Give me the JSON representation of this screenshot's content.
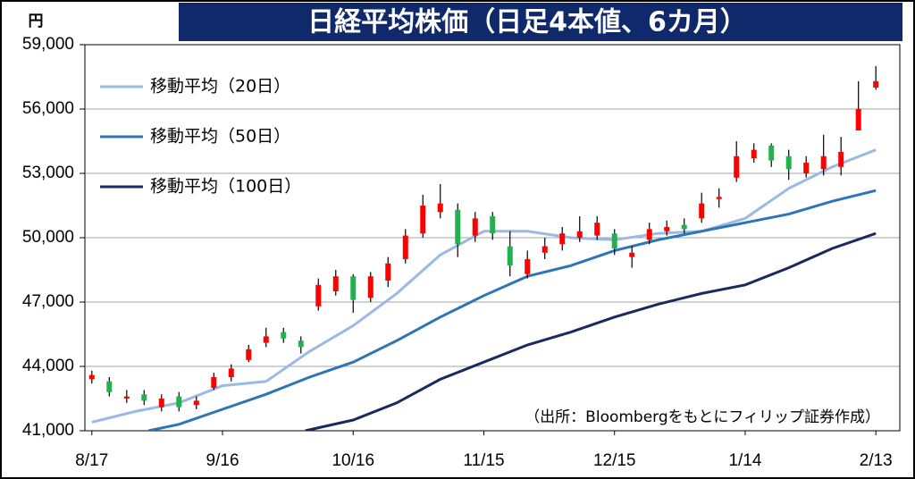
{
  "chart_data": {
    "type": "candlestick",
    "title": "日経平均株価（日足4本値、6カ月）",
    "unit": "円",
    "source": "（出所：Bloombergをもとにフィリップ証券作成）",
    "xlim": [
      -1.6,
      185.5
    ],
    "xticks": [
      {
        "value": 0,
        "label": "8/17"
      },
      {
        "value": 30,
        "label": "9/16"
      },
      {
        "value": 60,
        "label": "10/16"
      },
      {
        "value": 90,
        "label": "11/15"
      },
      {
        "value": 120,
        "label": "12/15"
      },
      {
        "value": 150,
        "label": "1/14"
      },
      {
        "value": 180,
        "label": "2/13"
      }
    ],
    "ylim": [
      41000,
      59000
    ],
    "yticks": [
      {
        "value": 41000,
        "label": "41,000"
      },
      {
        "value": 44000,
        "label": "44,000"
      },
      {
        "value": 47000,
        "label": "47,000"
      },
      {
        "value": 50000,
        "label": "50,000"
      },
      {
        "value": 53000,
        "label": "53,000"
      },
      {
        "value": 56000,
        "label": "56,000"
      },
      {
        "value": 59000,
        "label": "59,000"
      }
    ],
    "grid": true,
    "legend": "upper-left",
    "candles": {
      "up_color": "#ff0000",
      "down_color": "#22b14c",
      "wick_color": "#000000",
      "x": [
        0,
        4,
        8,
        12,
        16,
        20,
        24,
        28,
        32,
        36,
        40,
        44,
        48,
        52,
        56,
        60,
        64,
        68,
        72,
        76,
        80,
        84,
        88,
        92,
        96,
        100,
        104,
        108,
        112,
        116,
        120,
        124,
        128,
        132,
        136,
        140,
        144,
        148,
        152,
        156,
        160,
        164,
        168,
        172,
        176,
        180
      ],
      "open": [
        43400,
        43300,
        42500,
        42700,
        42100,
        42600,
        42200,
        43000,
        43500,
        44300,
        45100,
        45600,
        45200,
        46800,
        47500,
        48200,
        47200,
        48000,
        49000,
        50200,
        51200,
        51300,
        50100,
        51000,
        49600,
        48300,
        49300,
        49700,
        50000,
        50100,
        50200,
        49100,
        49900,
        50300,
        50600,
        50900,
        51800,
        52800,
        53700,
        54300,
        53800,
        53000,
        53200,
        53300,
        55000,
        57000
      ],
      "high": [
        43800,
        43500,
        42900,
        42900,
        42700,
        42800,
        42600,
        43700,
        44100,
        45000,
        45800,
        45800,
        45400,
        48100,
        48500,
        48300,
        48400,
        49100,
        50400,
        52000,
        52500,
        51600,
        51200,
        51200,
        50300,
        49400,
        50000,
        50500,
        51000,
        51000,
        50400,
        49600,
        50700,
        50800,
        50900,
        52100,
        52300,
        54500,
        54400,
        54400,
        54100,
        53800,
        54800,
        54700,
        57300,
        58000
      ],
      "low": [
        43200,
        42600,
        42300,
        42200,
        41900,
        41900,
        42000,
        42900,
        43300,
        44200,
        44900,
        45100,
        44600,
        46600,
        47300,
        46500,
        47000,
        47700,
        48800,
        50000,
        50900,
        49100,
        49800,
        49900,
        48200,
        48100,
        49000,
        49400,
        49800,
        49900,
        49200,
        48600,
        49700,
        50100,
        50200,
        50700,
        51400,
        52600,
        53500,
        53300,
        52700,
        52800,
        52900,
        52900,
        55000,
        56900
      ],
      "close": [
        43600,
        42800,
        42600,
        42400,
        42500,
        42100,
        42400,
        43500,
        43900,
        44800,
        45400,
        45300,
        44900,
        47800,
        48200,
        47100,
        48200,
        48800,
        50100,
        51500,
        51600,
        49700,
        50900,
        50200,
        48700,
        49000,
        49600,
        50200,
        50300,
        50700,
        49500,
        49300,
        50400,
        50500,
        50400,
        51600,
        51900,
        53800,
        54100,
        53600,
        53200,
        53500,
        53800,
        54000,
        56000,
        57300
      ]
    },
    "series": [
      {
        "name": "移動平均（20日）",
        "color": "#9bb9e4",
        "x": [
          0,
          10,
          20,
          30,
          40,
          50,
          60,
          70,
          80,
          90,
          100,
          110,
          120,
          130,
          140,
          150,
          160,
          170,
          180
        ],
        "values": [
          41400,
          41900,
          42300,
          43100,
          43300,
          44700,
          45900,
          47400,
          49200,
          50300,
          50300,
          50000,
          49900,
          50200,
          50300,
          50900,
          52300,
          53300,
          54100
        ]
      },
      {
        "name": "移動平均（50日）",
        "color": "#2e75b6",
        "x": [
          13,
          20,
          30,
          40,
          50,
          60,
          70,
          80,
          90,
          100,
          110,
          120,
          130,
          140,
          150,
          160,
          170,
          180
        ],
        "values": [
          41000,
          41300,
          42000,
          42700,
          43500,
          44200,
          45200,
          46300,
          47300,
          48200,
          48700,
          49400,
          49900,
          50300,
          50700,
          51100,
          51700,
          52200
        ]
      },
      {
        "name": "移動平均（100日）",
        "color": "#1b2a5e",
        "x": [
          49,
          60,
          70,
          80,
          90,
          100,
          110,
          120,
          130,
          140,
          150,
          160,
          170,
          180
        ],
        "values": [
          41000,
          41500,
          42300,
          43400,
          44200,
          45000,
          45600,
          46300,
          46900,
          47400,
          47800,
          48600,
          49500,
          50200
        ]
      }
    ]
  }
}
